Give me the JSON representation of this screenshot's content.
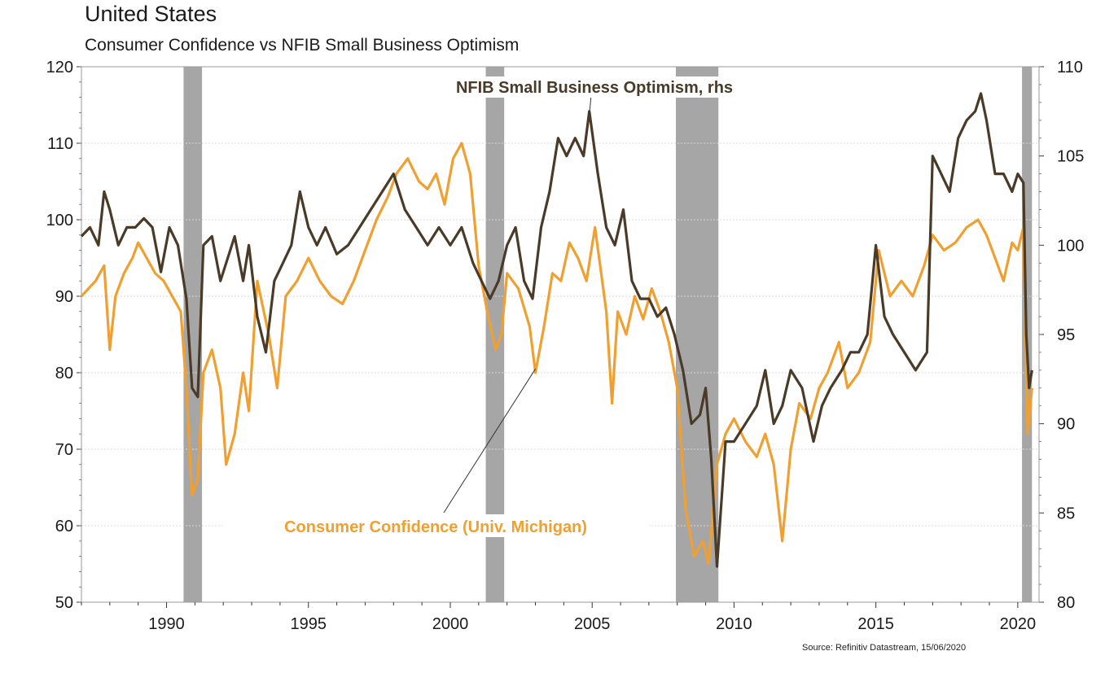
{
  "header": {
    "title": "United States",
    "subtitle": "Consumer Confidence vs NFIB Small Business Optimism"
  },
  "source": "Source: Refinitiv Datastream, 15/06/2020",
  "chart_data": {
    "type": "line",
    "title": "United States",
    "subtitle": "Consumer Confidence vs NFIB Small Business Optimism",
    "x_range": [
      1987.0,
      2020.75
    ],
    "x_ticks": [
      "1990",
      "1995",
      "2000",
      "2005",
      "2010",
      "2015",
      "2020"
    ],
    "y_left": {
      "range": [
        50,
        120
      ],
      "ticks": [
        "50",
        "60",
        "70",
        "80",
        "90",
        "100",
        "110",
        "120"
      ]
    },
    "y_right": {
      "range": [
        80,
        110
      ],
      "ticks": [
        "80",
        "85",
        "90",
        "95",
        "100",
        "105",
        "110"
      ]
    },
    "grid": true,
    "recessions": [
      [
        1990.6,
        1991.25
      ],
      [
        2001.25,
        2001.9
      ],
      [
        2007.95,
        2009.45
      ],
      [
        2020.15,
        2020.5
      ]
    ],
    "series": [
      {
        "name": "Consumer Confidence (Univ. Michigan)",
        "axis": "left",
        "color": "#f0a030",
        "x": [
          1987.0,
          1987.5,
          1987.8,
          1988.0,
          1988.2,
          1988.5,
          1988.8,
          1989.0,
          1989.3,
          1989.6,
          1989.9,
          1990.2,
          1990.5,
          1990.7,
          1990.9,
          1991.1,
          1991.3,
          1991.6,
          1991.9,
          1992.1,
          1992.4,
          1992.7,
          1992.9,
          1993.2,
          1993.6,
          1993.9,
          1994.2,
          1994.6,
          1995.0,
          1995.4,
          1995.8,
          1996.2,
          1996.6,
          1997.0,
          1997.4,
          1997.8,
          1998.1,
          1998.5,
          1998.9,
          1999.2,
          1999.5,
          1999.8,
          2000.1,
          2000.4,
          2000.7,
          2001.0,
          2001.3,
          2001.6,
          2001.8,
          2002.0,
          2002.4,
          2002.8,
          2003.0,
          2003.3,
          2003.6,
          2003.9,
          2004.2,
          2004.5,
          2004.8,
          2005.1,
          2005.5,
          2005.7,
          2005.9,
          2006.2,
          2006.5,
          2006.8,
          2007.1,
          2007.4,
          2007.7,
          2008.0,
          2008.3,
          2008.6,
          2008.9,
          2009.1,
          2009.4,
          2009.7,
          2010.0,
          2010.4,
          2010.8,
          2011.1,
          2011.4,
          2011.7,
          2012.0,
          2012.3,
          2012.7,
          2013.0,
          2013.3,
          2013.7,
          2014.0,
          2014.4,
          2014.8,
          2015.1,
          2015.5,
          2015.9,
          2016.3,
          2016.7,
          2017.0,
          2017.4,
          2017.8,
          2018.2,
          2018.6,
          2018.9,
          2019.2,
          2019.5,
          2019.8,
          2020.0,
          2020.2,
          2020.35,
          2020.5
        ],
        "y": [
          90,
          92,
          94,
          83,
          90,
          93,
          95,
          97,
          95,
          93,
          92,
          90,
          88,
          78,
          64,
          66,
          80,
          83,
          78,
          68,
          72,
          80,
          75,
          92,
          85,
          78,
          90,
          92,
          95,
          92,
          90,
          89,
          92,
          96,
          100,
          103,
          106,
          108,
          105,
          104,
          106,
          102,
          108,
          110,
          106,
          94,
          88,
          83,
          85,
          93,
          91,
          86,
          80,
          86,
          93,
          92,
          97,
          95,
          92,
          99,
          88,
          76,
          88,
          85,
          90,
          87,
          91,
          88,
          84,
          78,
          62,
          56,
          58,
          55,
          68,
          72,
          74,
          71,
          69,
          72,
          68,
          58,
          70,
          76,
          74,
          78,
          80,
          84,
          78,
          80,
          84,
          96,
          90,
          92,
          90,
          94,
          98,
          96,
          97,
          99,
          100,
          98,
          95,
          92,
          97,
          96,
          99,
          72,
          78
        ]
      },
      {
        "name": "NFIB Small Business Optimism, rhs",
        "axis": "right",
        "color": "#4a3a28",
        "x": [
          1987.0,
          1987.3,
          1987.6,
          1987.8,
          1988.0,
          1988.3,
          1988.6,
          1988.9,
          1989.2,
          1989.5,
          1989.8,
          1990.1,
          1990.4,
          1990.7,
          1990.9,
          1991.1,
          1991.3,
          1991.6,
          1991.9,
          1992.1,
          1992.4,
          1992.7,
          1992.9,
          1993.2,
          1993.5,
          1993.8,
          1994.1,
          1994.4,
          1994.7,
          1995.0,
          1995.3,
          1995.6,
          1996.0,
          1996.4,
          1996.8,
          1997.2,
          1997.6,
          1998.0,
          1998.4,
          1998.8,
          1999.2,
          1999.6,
          2000.0,
          2000.4,
          2000.8,
          2001.1,
          2001.4,
          2001.7,
          2002.0,
          2002.3,
          2002.6,
          2002.9,
          2003.2,
          2003.5,
          2003.8,
          2004.1,
          2004.4,
          2004.7,
          2004.9,
          2005.2,
          2005.5,
          2005.8,
          2006.1,
          2006.4,
          2006.7,
          2007.0,
          2007.3,
          2007.6,
          2007.9,
          2008.2,
          2008.5,
          2008.8,
          2009.0,
          2009.2,
          2009.4,
          2009.7,
          2010.0,
          2010.4,
          2010.8,
          2011.1,
          2011.4,
          2011.7,
          2012.0,
          2012.4,
          2012.8,
          2013.1,
          2013.4,
          2013.8,
          2014.1,
          2014.4,
          2014.7,
          2015.0,
          2015.3,
          2015.6,
          2016.0,
          2016.4,
          2016.8,
          2017.0,
          2017.3,
          2017.6,
          2017.9,
          2018.2,
          2018.5,
          2018.7,
          2018.9,
          2019.2,
          2019.5,
          2019.8,
          2020.0,
          2020.2,
          2020.3,
          2020.4,
          2020.5
        ],
        "y": [
          100.5,
          101,
          100,
          103,
          102,
          100,
          101,
          101,
          101.5,
          101,
          98.5,
          101,
          100,
          97,
          92,
          91.5,
          100,
          100.5,
          98,
          99,
          100.5,
          98,
          100,
          96,
          94,
          98,
          99,
          100,
          103,
          101,
          100,
          101,
          99.5,
          100,
          101,
          102,
          103,
          104,
          102,
          101,
          100,
          101,
          100,
          101,
          99,
          98,
          97,
          98,
          100,
          101,
          98,
          97,
          101,
          103,
          106,
          105,
          106,
          105,
          107.5,
          104,
          101,
          100,
          102,
          98,
          97,
          97,
          96,
          96.5,
          95,
          93,
          90,
          90.5,
          92,
          88,
          82,
          89,
          89,
          90,
          91,
          93,
          90,
          91,
          93,
          92,
          89,
          91,
          92,
          93,
          94,
          94,
          95,
          100,
          96,
          95,
          94,
          93,
          94,
          105,
          104,
          103,
          106,
          107,
          107.5,
          108.5,
          107,
          104,
          104,
          103,
          104,
          103.5,
          95,
          92,
          93
        ]
      }
    ],
    "annotations": [
      {
        "text": "NFIB Small Business Optimism, rhs",
        "series": 1,
        "pointer_x": 2004.9,
        "pointer_y_rhs": 107.3
      },
      {
        "text": "Consumer Confidence (Univ. Michigan)",
        "series": 0,
        "pointer_x": 2003.0,
        "pointer_y_lhs": 80.5
      }
    ]
  }
}
